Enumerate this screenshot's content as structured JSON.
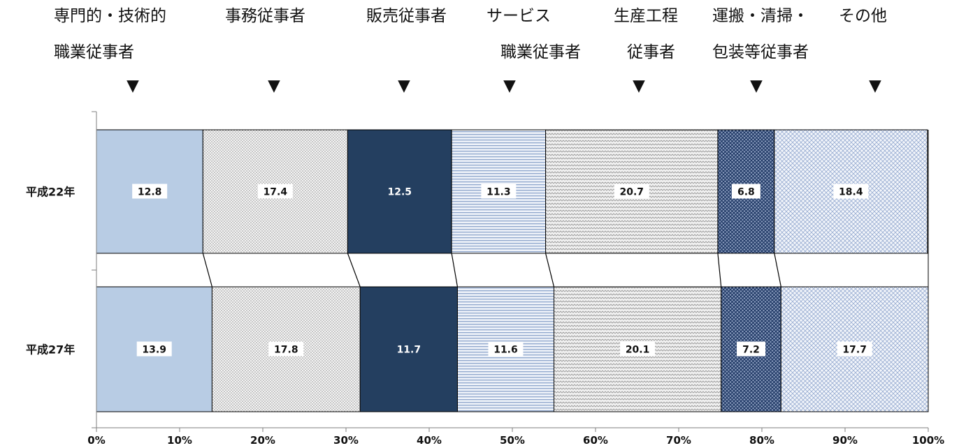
{
  "chart_data": {
    "type": "bar",
    "orientation": "horizontal",
    "stacked": "percent",
    "categories": [
      "平成22年",
      "平成27年"
    ],
    "series": [
      {
        "name": "専門的・技術的職業従事者",
        "label_lines": [
          "専門的・技術的",
          "職業従事者"
        ],
        "values": [
          12.8,
          13.9
        ],
        "color": "#b8cce4",
        "pattern": "solid"
      },
      {
        "name": "事務従事者",
        "label_lines": [
          "事務従事者"
        ],
        "values": [
          17.4,
          17.8
        ],
        "color": "#c9ccd1",
        "pattern": "fine-dots"
      },
      {
        "name": "販売従事者",
        "label_lines": [
          "販売従事者"
        ],
        "values": [
          12.5,
          11.7
        ],
        "color": "#243f60",
        "pattern": "solid"
      },
      {
        "name": "サービス職業従事者",
        "label_lines": [
          "サービス",
          "職業従事者"
        ],
        "values": [
          11.3,
          11.6
        ],
        "color": "#9fb5d6",
        "pattern": "horizontal-lines"
      },
      {
        "name": "生産工程従事者",
        "label_lines": [
          "生産工程",
          "従事者"
        ],
        "values": [
          20.7,
          20.1
        ],
        "color": "#a9a9a9",
        "pattern": "fine-waves"
      },
      {
        "name": "運搬・清掃・包装等従事者",
        "label_lines": [
          "運搬・清掃・",
          "包装等従事者"
        ],
        "values": [
          6.8,
          7.2
        ],
        "color": "#1f3864",
        "pattern": "dense-cross"
      },
      {
        "name": "その他",
        "label_lines": [
          "その他"
        ],
        "values": [
          18.4,
          17.7
        ],
        "color": "#8faadc",
        "pattern": "light-cross"
      }
    ],
    "xlim": [
      0,
      100
    ],
    "x_ticks": [
      "0%",
      "10%",
      "20%",
      "30%",
      "40%",
      "50%",
      "60%",
      "70%",
      "80%",
      "90%",
      "100%"
    ],
    "marker_glyph": "▼",
    "grid": false,
    "legend": "none",
    "title": "",
    "xlabel": "",
    "ylabel": ""
  }
}
